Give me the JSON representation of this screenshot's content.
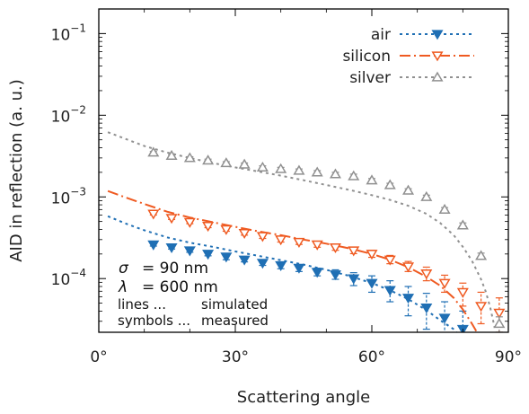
{
  "chart_data": {
    "type": "line",
    "xlabel": "Scattering angle",
    "ylabel": "AID in reflection (a. u.)",
    "xlim": [
      0,
      90
    ],
    "ylim": [
      2.2e-05,
      0.2
    ],
    "yscale": "log",
    "grid": false,
    "legend_position": "top-right",
    "x_ticks": [
      {
        "value": 0,
        "label": "0°"
      },
      {
        "value": 30,
        "label": "30°"
      },
      {
        "value": 60,
        "label": "60°"
      },
      {
        "value": 90,
        "label": "90°"
      }
    ],
    "y_ticks": [
      {
        "value": 0.1,
        "base": "10",
        "exp": "−1"
      },
      {
        "value": 0.01,
        "base": "10",
        "exp": "−2"
      },
      {
        "value": 0.001,
        "base": "10",
        "exp": "−3"
      },
      {
        "value": 0.0001,
        "base": "10",
        "exp": "−4"
      }
    ],
    "annotations": [
      {
        "lhs": "σ",
        "rhs": "=   90 nm"
      },
      {
        "lhs": "λ",
        "rhs": "= 600 nm"
      },
      {
        "lhs": "lines ...",
        "rhs": "simulated"
      },
      {
        "lhs": "symbols ...",
        "rhs": "measured"
      }
    ],
    "series": [
      {
        "name": "air",
        "color": "#1f6fb4",
        "marker": "triangle-down-filled",
        "line_style": "dotted",
        "simulated": {
          "x": [
            2,
            6,
            10,
            15,
            20,
            25,
            30,
            35,
            40,
            45,
            50,
            55,
            60,
            64,
            68,
            72,
            75,
            78,
            80,
            82
          ],
          "y": [
            0.00058,
            0.00047,
            0.00039,
            0.00032,
            0.000275,
            0.000245,
            0.000215,
            0.00019,
            0.000168,
            0.000148,
            0.000128,
            0.000108,
            8.8e-05,
            7.2e-05,
            5.6e-05,
            4.1e-05,
            3.1e-05,
            2.4e-05,
            1.8e-05,
            1.3e-05
          ]
        },
        "measured": {
          "x": [
            12,
            16,
            20,
            24,
            28,
            32,
            36,
            40,
            44,
            48,
            52,
            56,
            60,
            64,
            68,
            72,
            76,
            80
          ],
          "y": [
            0.00026,
            0.00024,
            0.00022,
            0.0002,
            0.000185,
            0.00017,
            0.000155,
            0.000145,
            0.000135,
            0.00012,
            0.000112,
            0.0001,
            8.8e-05,
            7.2e-05,
            5.8e-05,
            4.4e-05,
            3.3e-05,
            2.4e-05
          ],
          "err_low": [
            0.00025,
            0.00023,
            0.00021,
            0.00019,
            0.00017,
            0.00016,
            0.000145,
            0.000132,
            0.000122,
            0.000108,
            9.8e-05,
            8.2e-05,
            6.8e-05,
            5.2e-05,
            3.5e-05,
            2.4e-05,
            1.6e-05,
            1.2e-05
          ],
          "err_high": [
            0.00027,
            0.00025,
            0.00023,
            0.00021,
            0.000195,
            0.000182,
            0.000168,
            0.000158,
            0.000148,
            0.000134,
            0.000128,
            0.000118,
            0.000108,
            9.4e-05,
            8e-05,
            6.6e-05,
            5.2e-05,
            4e-05
          ]
        }
      },
      {
        "name": "silicon",
        "color": "#ef5a21",
        "marker": "triangle-down-open",
        "line_style": "dash-dot",
        "simulated": {
          "x": [
            2,
            6,
            10,
            15,
            20,
            25,
            30,
            35,
            40,
            45,
            50,
            55,
            60,
            64,
            68,
            72,
            75,
            78,
            80,
            82,
            84
          ],
          "y": [
            0.00118,
            0.00098,
            0.00082,
            0.00066,
            0.00056,
            0.00049,
            0.00043,
            0.00038,
            0.00034,
            0.0003,
            0.000268,
            0.000235,
            0.0002,
            0.00017,
            0.000138,
            0.000105,
            8.2e-05,
            5.8e-05,
            4.2e-05,
            2.8e-05,
            1.8e-05
          ]
        },
        "measured": {
          "x": [
            12,
            16,
            20,
            24,
            28,
            32,
            36,
            40,
            44,
            48,
            52,
            56,
            60,
            64,
            68,
            72,
            76,
            80,
            84,
            88
          ],
          "y": [
            0.00062,
            0.00055,
            0.00049,
            0.00044,
            0.0004,
            0.00036,
            0.00033,
            0.0003,
            0.00028,
            0.00026,
            0.00024,
            0.00022,
            0.0002,
            0.00017,
            0.00014,
            0.000115,
            8.8e-05,
            6.8e-05,
            4.6e-05,
            3.8e-05
          ],
          "err_low": [
            0.0006,
            0.00053,
            0.00047,
            0.00042,
            0.00038,
            0.00034,
            0.00031,
            0.00028,
            0.000262,
            0.000242,
            0.000222,
            0.000202,
            0.000182,
            0.000152,
            0.000122,
            9.4e-05,
            6.8e-05,
            4.6e-05,
            2.8e-05,
            2.2e-05
          ],
          "err_high": [
            0.00064,
            0.00057,
            0.00051,
            0.00046,
            0.00042,
            0.00038,
            0.00035,
            0.00032,
            0.0003,
            0.00028,
            0.00026,
            0.000242,
            0.000222,
            0.000192,
            0.000162,
            0.000138,
            0.00011,
            8.8e-05,
            6.8e-05,
            5.8e-05
          ]
        }
      },
      {
        "name": "silver",
        "color": "#909090",
        "marker": "triangle-up-open",
        "line_style": "dotted",
        "simulated": {
          "x": [
            2,
            6,
            10,
            15,
            20,
            25,
            30,
            35,
            40,
            45,
            50,
            55,
            60,
            64,
            68,
            72,
            75,
            78,
            80,
            82,
            84,
            85,
            86,
            87
          ],
          "y": [
            0.0062,
            0.0051,
            0.0042,
            0.0035,
            0.003,
            0.0026,
            0.0023,
            0.00205,
            0.00182,
            0.0016,
            0.0014,
            0.00122,
            0.00105,
            0.00092,
            0.00078,
            0.00062,
            0.00048,
            0.00034,
            0.000245,
            0.000165,
            9.8e-05,
            7e-05,
            4.5e-05,
            2.5e-05
          ]
        },
        "measured": {
          "x": [
            12,
            16,
            20,
            24,
            28,
            32,
            36,
            40,
            44,
            48,
            52,
            56,
            60,
            64,
            68,
            72,
            76,
            80,
            84,
            88
          ],
          "y": [
            0.0035,
            0.0032,
            0.003,
            0.0028,
            0.0026,
            0.0025,
            0.0023,
            0.0022,
            0.0021,
            0.002,
            0.0019,
            0.0018,
            0.0016,
            0.0014,
            0.0012,
            0.001,
            0.0007,
            0.00045,
            0.00019,
            2.8e-05
          ],
          "err_low": [
            0.0034,
            0.0031,
            0.0029,
            0.0027,
            0.0025,
            0.0024,
            0.0022,
            0.0021,
            0.002,
            0.0019,
            0.0018,
            0.0017,
            0.00152,
            0.00133,
            0.00114,
            0.00095,
            0.00066,
            0.00042,
            0.000175,
            2.2e-05
          ],
          "err_high": [
            0.0036,
            0.0033,
            0.0031,
            0.0029,
            0.0027,
            0.0026,
            0.0024,
            0.0023,
            0.0022,
            0.0021,
            0.002,
            0.0019,
            0.00168,
            0.00147,
            0.00126,
            0.00105,
            0.00074,
            0.00048,
            0.000205,
            3.4e-05
          ]
        }
      }
    ]
  }
}
